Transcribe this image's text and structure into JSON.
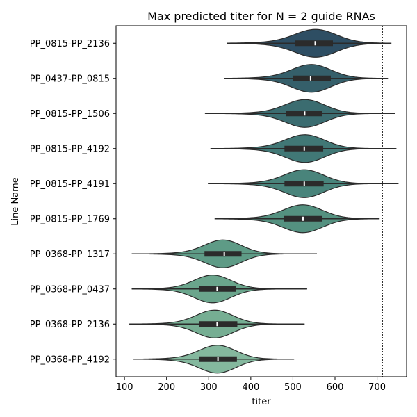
{
  "chart_data": {
    "type": "violin",
    "orientation": "horizontal",
    "title": "Max predicted titer for N = 2 guide RNAs",
    "xlabel": "titer",
    "ylabel": "Line Name",
    "xlim": [
      80,
      770
    ],
    "xticks": [
      100,
      200,
      300,
      400,
      500,
      600,
      700
    ],
    "reference_line": {
      "x": 713,
      "style": "dotted"
    },
    "categories": [
      "PP_0815-PP_2136",
      "PP_0437-PP_0815",
      "PP_0815-PP_1506",
      "PP_0815-PP_4192",
      "PP_0815-PP_4191",
      "PP_0815-PP_1769",
      "PP_0368-PP_1317",
      "PP_0368-PP_0437",
      "PP_0368-PP_2136",
      "PP_0368-PP_4192"
    ],
    "violins": [
      {
        "name": "PP_0815-PP_2136",
        "color": "#2e4e63",
        "min": 344,
        "q1": 505,
        "median": 553,
        "q3": 595,
        "max": 733,
        "mode": 555,
        "bw": 48
      },
      {
        "name": "PP_0437-PP_0815",
        "color": "#355f6a",
        "min": 337,
        "q1": 500,
        "median": 542,
        "q3": 590,
        "max": 725,
        "mode": 545,
        "bw": 45
      },
      {
        "name": "PP_0815-PP_1506",
        "color": "#3b6c70",
        "min": 292,
        "q1": 483,
        "median": 528,
        "q3": 570,
        "max": 742,
        "mode": 530,
        "bw": 45
      },
      {
        "name": "PP_0815-PP_4192",
        "color": "#417876",
        "min": 305,
        "q1": 480,
        "median": 527,
        "q3": 572,
        "max": 745,
        "mode": 530,
        "bw": 45
      },
      {
        "name": "PP_0815-PP_4191",
        "color": "#49847b",
        "min": 299,
        "q1": 480,
        "median": 527,
        "q3": 573,
        "max": 750,
        "mode": 528,
        "bw": 45
      },
      {
        "name": "PP_0815-PP_1769",
        "color": "#549180",
        "min": 315,
        "q1": 478,
        "median": 524,
        "q3": 570,
        "max": 705,
        "mode": 525,
        "bw": 45
      },
      {
        "name": "PP_0368-PP_1317",
        "color": "#5e9b86",
        "min": 118,
        "q1": 290,
        "median": 337,
        "q3": 378,
        "max": 557,
        "mode": 335,
        "bw": 42
      },
      {
        "name": "PP_0368-PP_0437",
        "color": "#6aa58c",
        "min": 118,
        "q1": 278,
        "median": 320,
        "q3": 365,
        "max": 533,
        "mode": 310,
        "bw": 42
      },
      {
        "name": "PP_0368-PP_2136",
        "color": "#76ae93",
        "min": 112,
        "q1": 277,
        "median": 320,
        "q3": 368,
        "max": 527,
        "mode": 315,
        "bw": 42
      },
      {
        "name": "PP_0368-PP_4192",
        "color": "#84b89e",
        "min": 122,
        "q1": 278,
        "median": 322,
        "q3": 367,
        "max": 502,
        "mode": 322,
        "bw": 42
      }
    ]
  }
}
